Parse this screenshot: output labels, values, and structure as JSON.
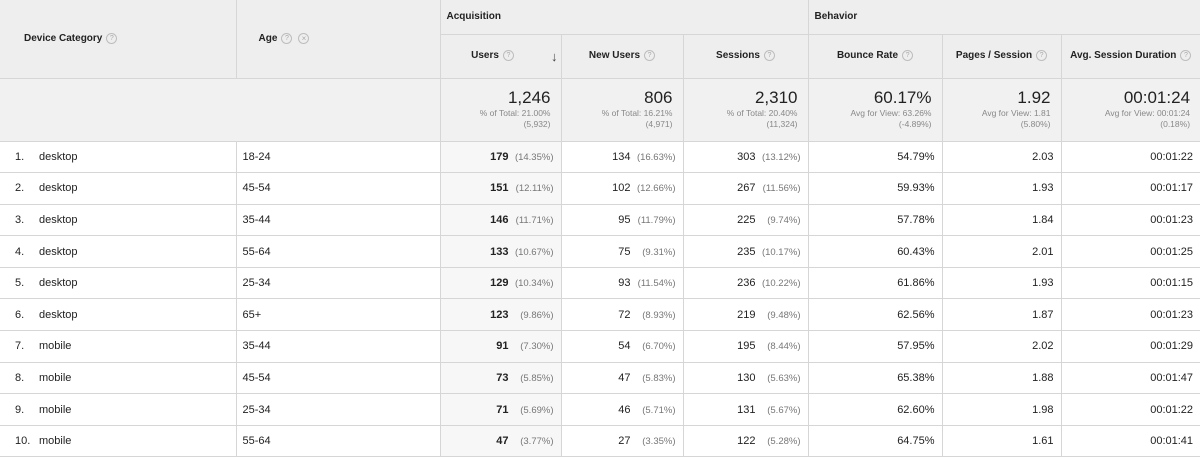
{
  "header": {
    "device_category": "Device Category",
    "age": "Age",
    "acquisition": "Acquisition",
    "behavior": "Behavior",
    "help_glyph": "?",
    "clear_glyph": "×",
    "sort_glyph": "↓"
  },
  "columns": {
    "users": "Users",
    "new_users": "New Users",
    "sessions": "Sessions",
    "bounce_rate": "Bounce Rate",
    "pages_session": "Pages / Session",
    "avg_duration": "Avg. Session Duration"
  },
  "totals": {
    "users": {
      "value": "1,246",
      "sub1": "% of Total: 21.00%",
      "sub2": "(5,932)"
    },
    "new_users": {
      "value": "806",
      "sub1": "% of Total: 16.21%",
      "sub2": "(4,971)"
    },
    "sessions": {
      "value": "2,310",
      "sub1": "% of Total: 20.40%",
      "sub2": "(11,324)"
    },
    "bounce_rate": {
      "value": "60.17%",
      "sub1": "Avg for View: 63.26%",
      "sub2": "(-4.89%)"
    },
    "pages_session": {
      "value": "1.92",
      "sub1": "Avg for View: 1.81",
      "sub2": "(5.80%)"
    },
    "avg_duration": {
      "value": "00:01:24",
      "sub1": "Avg for View: 00:01:24",
      "sub2": "(0.18%)"
    }
  },
  "rows": [
    {
      "idx": "1.",
      "device": "desktop",
      "age": "18-24",
      "users": "179",
      "users_pct": "(14.35%)",
      "new_users": "134",
      "new_users_pct": "(16.63%)",
      "sessions": "303",
      "sessions_pct": "(13.12%)",
      "bounce": "54.79%",
      "pages": "2.03",
      "duration": "00:01:22"
    },
    {
      "idx": "2.",
      "device": "desktop",
      "age": "45-54",
      "users": "151",
      "users_pct": "(12.11%)",
      "new_users": "102",
      "new_users_pct": "(12.66%)",
      "sessions": "267",
      "sessions_pct": "(11.56%)",
      "bounce": "59.93%",
      "pages": "1.93",
      "duration": "00:01:17"
    },
    {
      "idx": "3.",
      "device": "desktop",
      "age": "35-44",
      "users": "146",
      "users_pct": "(11.71%)",
      "new_users": "95",
      "new_users_pct": "(11.79%)",
      "sessions": "225",
      "sessions_pct": "(9.74%)",
      "bounce": "57.78%",
      "pages": "1.84",
      "duration": "00:01:23"
    },
    {
      "idx": "4.",
      "device": "desktop",
      "age": "55-64",
      "users": "133",
      "users_pct": "(10.67%)",
      "new_users": "75",
      "new_users_pct": "(9.31%)",
      "sessions": "235",
      "sessions_pct": "(10.17%)",
      "bounce": "60.43%",
      "pages": "2.01",
      "duration": "00:01:25"
    },
    {
      "idx": "5.",
      "device": "desktop",
      "age": "25-34",
      "users": "129",
      "users_pct": "(10.34%)",
      "new_users": "93",
      "new_users_pct": "(11.54%)",
      "sessions": "236",
      "sessions_pct": "(10.22%)",
      "bounce": "61.86%",
      "pages": "1.93",
      "duration": "00:01:15"
    },
    {
      "idx": "6.",
      "device": "desktop",
      "age": "65+",
      "users": "123",
      "users_pct": "(9.86%)",
      "new_users": "72",
      "new_users_pct": "(8.93%)",
      "sessions": "219",
      "sessions_pct": "(9.48%)",
      "bounce": "62.56%",
      "pages": "1.87",
      "duration": "00:01:23"
    },
    {
      "idx": "7.",
      "device": "mobile",
      "age": "35-44",
      "users": "91",
      "users_pct": "(7.30%)",
      "new_users": "54",
      "new_users_pct": "(6.70%)",
      "sessions": "195",
      "sessions_pct": "(8.44%)",
      "bounce": "57.95%",
      "pages": "2.02",
      "duration": "00:01:29"
    },
    {
      "idx": "8.",
      "device": "mobile",
      "age": "45-54",
      "users": "73",
      "users_pct": "(5.85%)",
      "new_users": "47",
      "new_users_pct": "(5.83%)",
      "sessions": "130",
      "sessions_pct": "(5.63%)",
      "bounce": "65.38%",
      "pages": "1.88",
      "duration": "00:01:47"
    },
    {
      "idx": "9.",
      "device": "mobile",
      "age": "25-34",
      "users": "71",
      "users_pct": "(5.69%)",
      "new_users": "46",
      "new_users_pct": "(5.71%)",
      "sessions": "131",
      "sessions_pct": "(5.67%)",
      "bounce": "62.60%",
      "pages": "1.98",
      "duration": "00:01:22"
    },
    {
      "idx": "10.",
      "device": "mobile",
      "age": "55-64",
      "users": "47",
      "users_pct": "(3.77%)",
      "new_users": "27",
      "new_users_pct": "(3.35%)",
      "sessions": "122",
      "sessions_pct": "(5.28%)",
      "bounce": "64.75%",
      "pages": "1.61",
      "duration": "00:01:41"
    }
  ]
}
